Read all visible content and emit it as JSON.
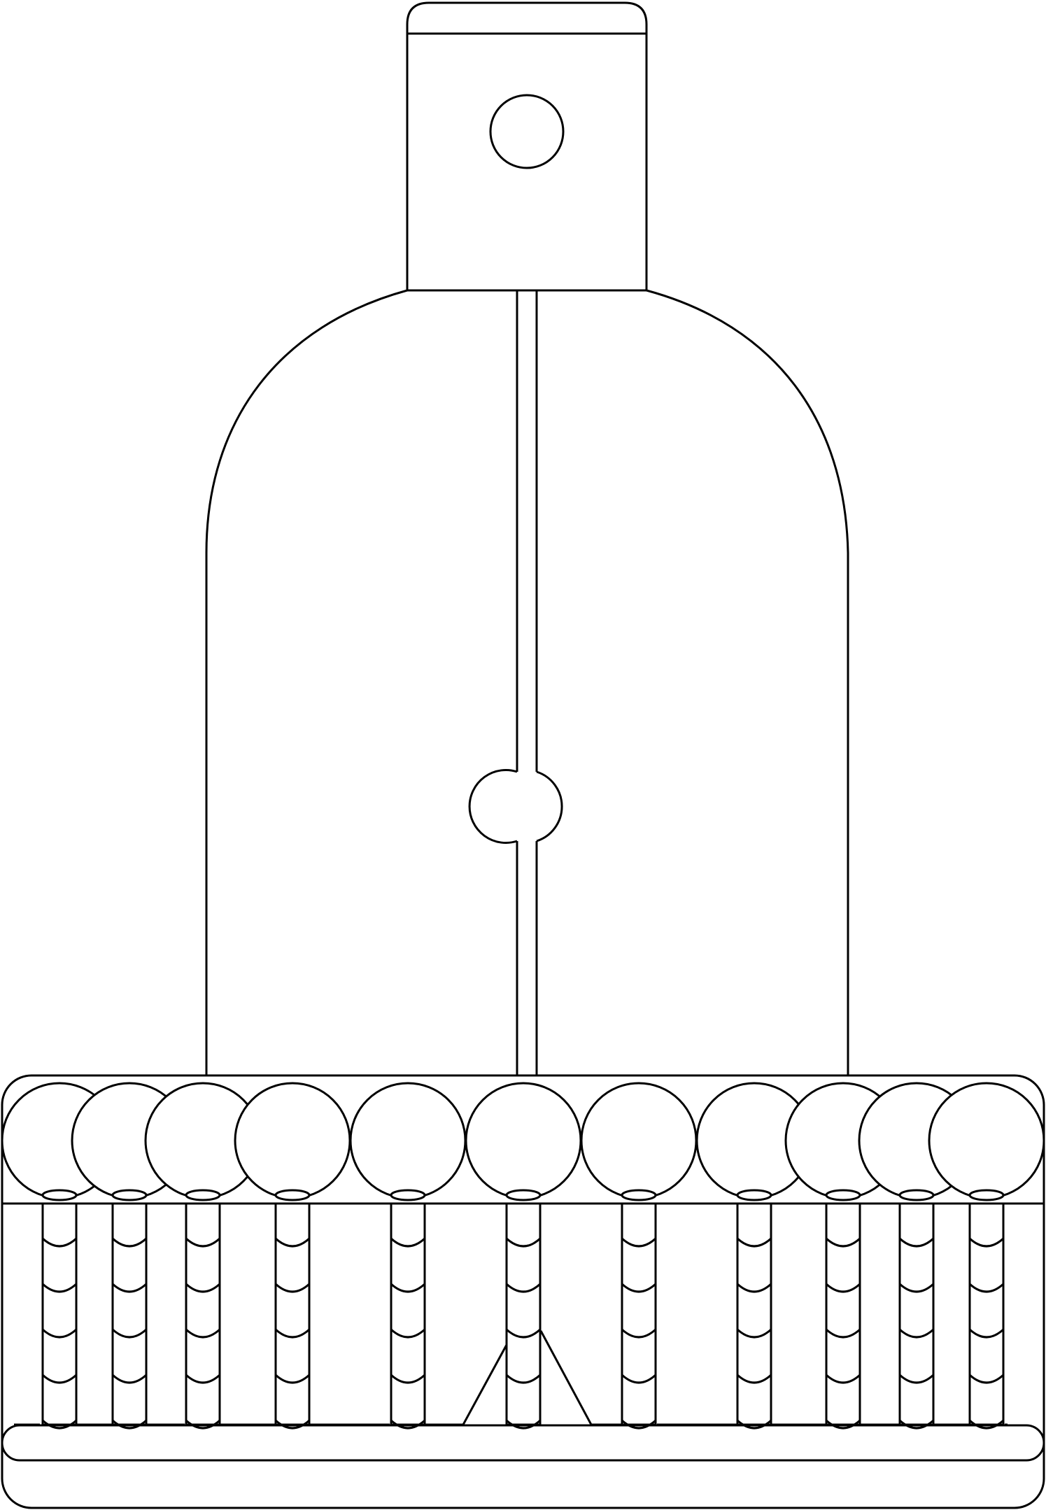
{
  "figure": {
    "kind": "line-art outline drawing",
    "stroke_color": "#000000",
    "background_color": "#ffffff"
  },
  "top_cap": {
    "parts": [
      "rounded-top",
      "rectangular-neck",
      "round-hole"
    ]
  },
  "body": {
    "parts": [
      "arched-dome",
      "central-slot",
      "slot-circle"
    ]
  },
  "base": {
    "ball_count": 11,
    "peg_count": 11,
    "disc_count": 11,
    "rungs_per_peg": 5,
    "parts": [
      "base-frame",
      "ball-row",
      "peg-columns",
      "center-a-frame",
      "bottom-rail"
    ]
  }
}
